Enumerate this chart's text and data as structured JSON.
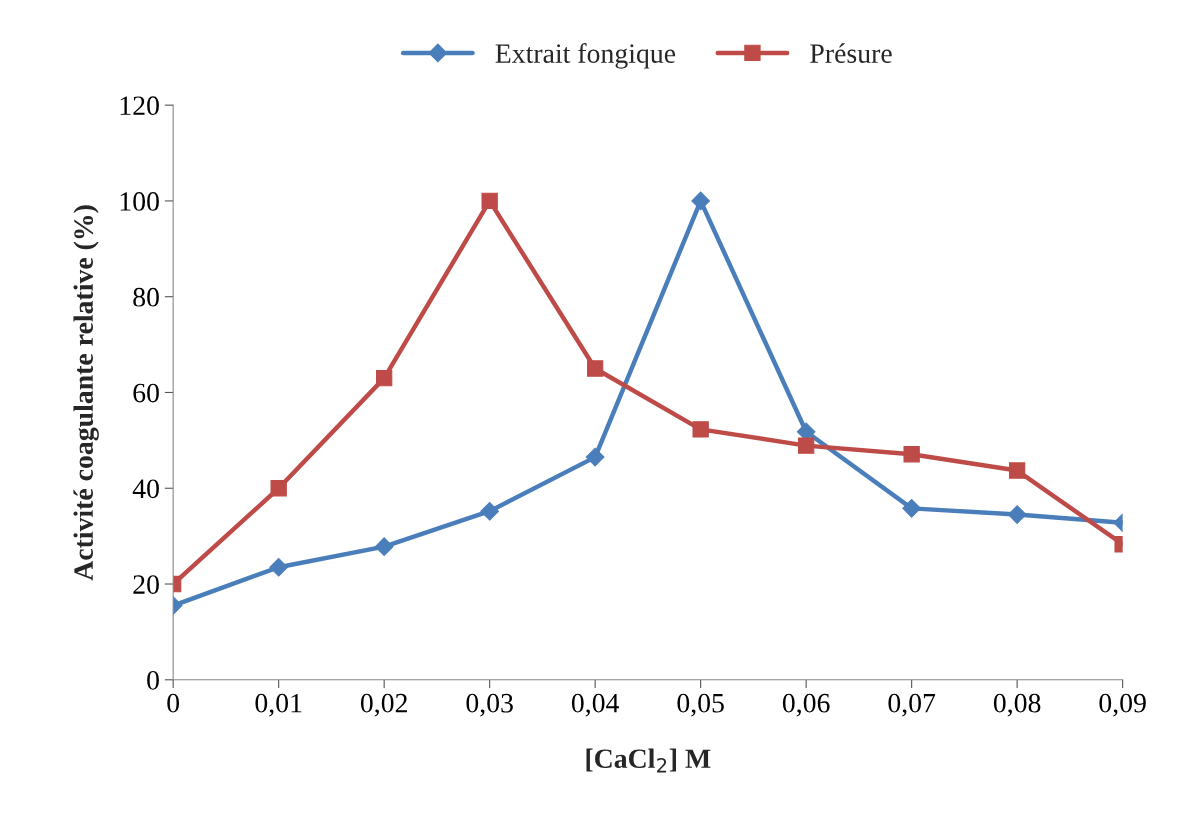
{
  "chart_data": {
    "type": "line",
    "xlabel": "[CaCl$_{2}$] M",
    "ylabel": "Activité coagulante relative (%)",
    "categories": [
      "0",
      "0,01",
      "0,02",
      "0,03",
      "0,04",
      "0,05",
      "0,06",
      "0,07",
      "0,08",
      "0,09"
    ],
    "series": [
      {
        "name": "Extrait fongique",
        "color": "#4a7ebb",
        "marker": "diamond",
        "values": [
          15.5,
          23.5,
          27.8,
          35.2,
          46.5,
          100,
          51.8,
          35.8,
          34.5,
          32.8
        ]
      },
      {
        "name": "Présure",
        "color": "#be4b48",
        "marker": "square",
        "values": [
          20,
          40,
          63,
          100,
          65,
          52.3,
          48.9,
          47.1,
          43.7,
          28.3
        ]
      }
    ],
    "ylim": [
      0,
      120
    ],
    "yticks": [
      0,
      20,
      40,
      60,
      80,
      100,
      120
    ],
    "grid": false,
    "legend": "top",
    "line_style": "solid"
  }
}
